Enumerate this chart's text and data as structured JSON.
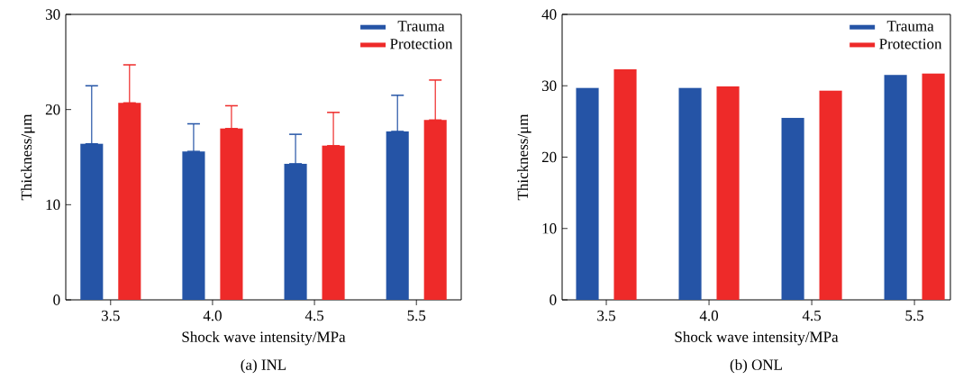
{
  "chart_data": [
    {
      "type": "bar",
      "title": "(a) INL",
      "xlabel": "Shock wave intensity/MPa",
      "ylabel": "Thickness/μm",
      "categories": [
        "3.5",
        "4.0",
        "4.5",
        "5.5"
      ],
      "series": [
        {
          "name": "Trauma",
          "color": "#2554a6",
          "values": [
            16.4,
            15.6,
            14.3,
            17.7
          ],
          "errors": [
            [
              16.4,
              22.5
            ],
            [
              15.6,
              18.5
            ],
            [
              14.3,
              17.4
            ],
            [
              17.7,
              21.5
            ]
          ]
        },
        {
          "name": "Protection",
          "color": "#ee2a29",
          "values": [
            20.7,
            18.0,
            16.2,
            18.9
          ],
          "errors": [
            [
              20.7,
              24.7
            ],
            [
              18.0,
              20.4
            ],
            [
              16.2,
              19.7
            ],
            [
              18.9,
              23.1
            ]
          ]
        }
      ],
      "ylim": [
        0,
        30
      ],
      "yticks": [
        0,
        10,
        20,
        30
      ],
      "legend": "top right"
    },
    {
      "type": "bar",
      "title": "(b) ONL",
      "xlabel": "Shock wave intensity/MPa",
      "ylabel": "Thickness/μm",
      "categories": [
        "3.5",
        "4.0",
        "4.5",
        "5.5"
      ],
      "series": [
        {
          "name": "Trauma",
          "color": "#2554a6",
          "values": [
            29.7,
            29.7,
            25.5,
            31.5
          ]
        },
        {
          "name": "Protection",
          "color": "#ee2a29",
          "values": [
            32.3,
            29.9,
            29.3,
            31.7
          ]
        }
      ],
      "ylim": [
        0,
        40
      ],
      "yticks": [
        0,
        10,
        20,
        30,
        40
      ],
      "legend": "top right"
    }
  ]
}
